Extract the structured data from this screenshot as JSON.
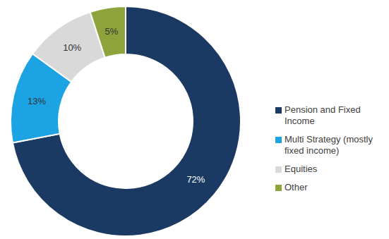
{
  "chart_data": {
    "type": "pie",
    "categories": [
      "Pension and Fixed Income",
      "Multi Strategy (mostly fixed income)",
      "Equities",
      "Other"
    ],
    "values": [
      72,
      13,
      10,
      5
    ],
    "value_labels": [
      "72%",
      "13%",
      "10%",
      "5%"
    ],
    "colors": [
      "#1b3a63",
      "#1ba3e3",
      "#d9d9d9",
      "#8ea33b"
    ],
    "data_labels": true,
    "legend": "right"
  }
}
